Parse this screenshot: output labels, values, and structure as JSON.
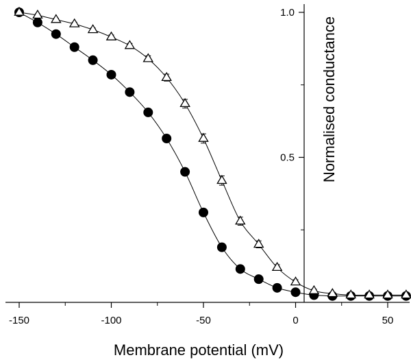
{
  "chart_data": {
    "type": "scatter",
    "xlabel": "Membrane potential (mV)",
    "ylabel": "Normalised conductance",
    "xlim": [
      -160,
      62
    ],
    "ylim": [
      0,
      1.0
    ],
    "xticks": [
      -150,
      -100,
      -50,
      0,
      50
    ],
    "yticks": [
      0.5,
      1.0
    ],
    "grid": false,
    "series": [
      {
        "marker": "filled-circle",
        "color": "#000000",
        "x": [
          -150,
          -140,
          -130,
          -120,
          -110,
          -100,
          -90,
          -80,
          -70,
          -60,
          -50,
          -40,
          -30,
          -20,
          -10,
          0,
          10,
          20,
          30,
          40,
          50,
          60
        ],
        "y": [
          1.0,
          0.965,
          0.925,
          0.88,
          0.835,
          0.785,
          0.725,
          0.655,
          0.565,
          0.45,
          0.31,
          0.19,
          0.115,
          0.08,
          0.05,
          0.035,
          0.025,
          0.022,
          0.022,
          0.022,
          0.022,
          0.022
        ],
        "err": [
          0.005,
          0.005,
          0.006,
          0.006,
          0.006,
          0.007,
          0.008,
          0.01,
          0.012,
          0.012,
          0.012,
          0.01,
          0.008,
          0.006,
          0.005,
          0.004,
          0.003,
          0.003,
          0.003,
          0.003,
          0.003,
          0.003
        ]
      },
      {
        "marker": "open-triangle",
        "color": "#000000",
        "x": [
          -150,
          -140,
          -130,
          -120,
          -110,
          -100,
          -90,
          -80,
          -70,
          -60,
          -50,
          -40,
          -30,
          -20,
          -10,
          0,
          10,
          20,
          30,
          40,
          50,
          60
        ],
        "y": [
          1.0,
          0.99,
          0.975,
          0.96,
          0.94,
          0.915,
          0.885,
          0.84,
          0.775,
          0.685,
          0.565,
          0.42,
          0.28,
          0.2,
          0.12,
          0.07,
          0.04,
          0.03,
          0.025,
          0.025,
          0.025,
          0.025
        ],
        "err": [
          0.005,
          0.005,
          0.005,
          0.006,
          0.006,
          0.007,
          0.008,
          0.01,
          0.012,
          0.015,
          0.016,
          0.016,
          0.014,
          0.012,
          0.01,
          0.008,
          0.006,
          0.005,
          0.004,
          0.004,
          0.004,
          0.004
        ]
      }
    ]
  }
}
